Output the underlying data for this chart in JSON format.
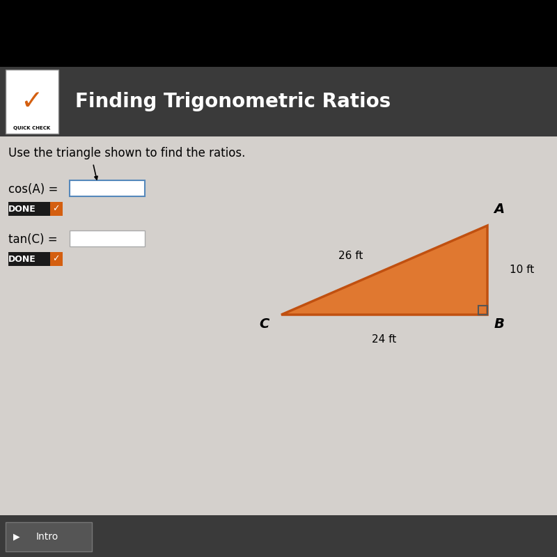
{
  "bg_header_color": "#3a3a3a",
  "bg_content_color": "#d4d0cc",
  "bg_black_top": "#000000",
  "title_text": "Finding Trigonometric Ratios",
  "title_color": "#ffffff",
  "title_fontsize": 20,
  "quickcheck_text": "QUICK CHECK",
  "check_color": "#d45f10",
  "instruction_text": "Use the triangle shown to find the ratios.",
  "instruction_fontsize": 12,
  "cos_label": "cos(A) =",
  "tan_label": "tan(C) =",
  "done_bg": "#1a1a1a",
  "done_text": "DONE",
  "done_check_color": "#d45f10",
  "triangle_fill": "#e07830",
  "triangle_edge": "#c05010",
  "vertex_A": [
    0.875,
    0.595
  ],
  "vertex_B": [
    0.875,
    0.435
  ],
  "vertex_C": [
    0.505,
    0.435
  ],
  "label_A": "A",
  "label_B": "B",
  "label_C": "C",
  "side_AC_label": "26 ft",
  "side_AB_label": "10 ft",
  "side_CB_label": "24 ft",
  "footer_bg": "#3a3a3a",
  "footer_text": "Intro",
  "footer_color": "#ffffff"
}
